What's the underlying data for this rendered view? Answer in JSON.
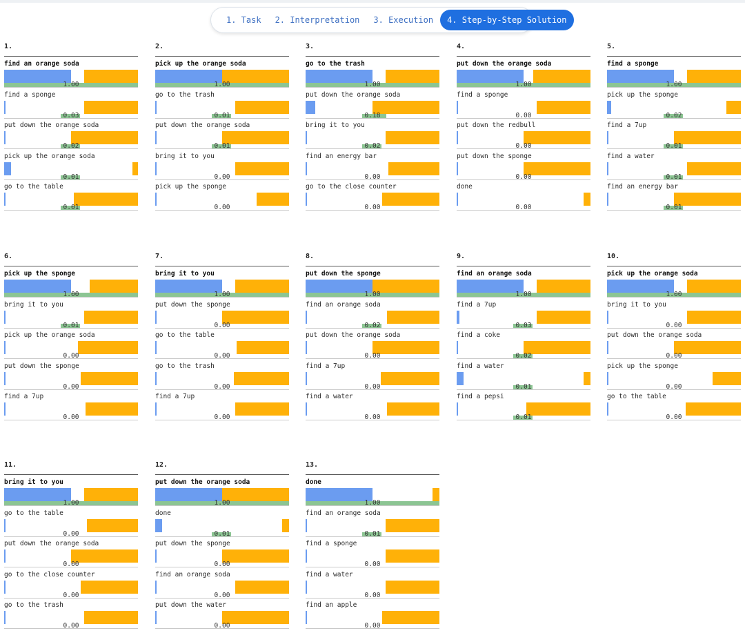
{
  "tabs": [
    {
      "label": "1. Task",
      "active": false
    },
    {
      "label": "2. Interpretation",
      "active": false
    },
    {
      "label": "3. Execution",
      "active": false
    },
    {
      "label": "4. Step-by-Step Solution",
      "active": true
    }
  ],
  "colors": {
    "blue": "#6b9cf0",
    "orange": "#ffb108",
    "green": "#8cc593",
    "accent": "#1f6fe0"
  },
  "steps": [
    {
      "number": "1.",
      "options": [
        {
          "label": "find an orange soda",
          "value": "1.00",
          "score": 0.5,
          "prob": 0.4
        },
        {
          "label": "find a sponge",
          "value": "0.03",
          "score": 0.01,
          "prob": 0.4
        },
        {
          "label": "put down the orange soda",
          "value": "0.02",
          "score": 0.01,
          "prob": 0.5
        },
        {
          "label": "pick up the orange soda",
          "value": "0.01",
          "score": 0.05,
          "prob": 0.04
        },
        {
          "label": "go to the table",
          "value": "0.01",
          "score": 0.01,
          "prob": 0.48
        }
      ]
    },
    {
      "number": "2.",
      "options": [
        {
          "label": "pick up the orange soda",
          "value": "1.00",
          "score": 0.5,
          "prob": 0.5
        },
        {
          "label": "go to the trash",
          "value": "0.01",
          "score": 0.01,
          "prob": 0.4
        },
        {
          "label": "put down the orange soda",
          "value": "0.01",
          "score": 0.01,
          "prob": 0.5
        },
        {
          "label": "bring it to you",
          "value": "0.00",
          "score": 0.0,
          "prob": 0.4
        },
        {
          "label": "pick up the sponge",
          "value": "0.00",
          "score": 0.0,
          "prob": 0.24
        }
      ]
    },
    {
      "number": "3.",
      "options": [
        {
          "label": "go to the trash",
          "value": "1.00",
          "score": 0.5,
          "prob": 0.4
        },
        {
          "label": "put down the orange soda",
          "value": "0.18",
          "score": 0.07,
          "prob": 0.5
        },
        {
          "label": "bring it to you",
          "value": "0.02",
          "score": 0.01,
          "prob": 0.4
        },
        {
          "label": "find an energy bar",
          "value": "0.00",
          "score": 0.0,
          "prob": 0.38
        },
        {
          "label": "go to the close counter",
          "value": "0.00",
          "score": 0.0,
          "prob": 0.43
        }
      ]
    },
    {
      "number": "4.",
      "options": [
        {
          "label": "put down the orange soda",
          "value": "1.00",
          "score": 0.5,
          "prob": 0.43
        },
        {
          "label": "find a sponge",
          "value": "0.00",
          "score": 0.0,
          "prob": 0.4
        },
        {
          "label": "put down the redbull",
          "value": "0.00",
          "score": 0.0,
          "prob": 0.5
        },
        {
          "label": "put down the sponge",
          "value": "0.00",
          "score": 0.0,
          "prob": 0.5
        },
        {
          "label": "done",
          "value": "0.00",
          "score": 0.0,
          "prob": 0.05
        }
      ]
    },
    {
      "number": "5.",
      "options": [
        {
          "label": "find a sponge",
          "value": "1.00",
          "score": 0.5,
          "prob": 0.4
        },
        {
          "label": "pick up the sponge",
          "value": "0.02",
          "score": 0.03,
          "prob": 0.11
        },
        {
          "label": "find a 7up",
          "value": "0.01",
          "score": 0.01,
          "prob": 0.5
        },
        {
          "label": "find a water",
          "value": "0.01",
          "score": 0.01,
          "prob": 0.4
        },
        {
          "label": "find an energy bar",
          "value": "0.01",
          "score": 0.01,
          "prob": 0.5
        }
      ]
    },
    {
      "number": "6.",
      "options": [
        {
          "label": "pick up the sponge",
          "value": "1.00",
          "score": 0.5,
          "prob": 0.36
        },
        {
          "label": "bring it to you",
          "value": "0.01",
          "score": 0.01,
          "prob": 0.4
        },
        {
          "label": "pick up the orange soda",
          "value": "0.00",
          "score": 0.0,
          "prob": 0.45
        },
        {
          "label": "put down the sponge",
          "value": "0.00",
          "score": 0.0,
          "prob": 0.43
        },
        {
          "label": "find a 7up",
          "value": "0.00",
          "score": 0.0,
          "prob": 0.39
        }
      ]
    },
    {
      "number": "7.",
      "options": [
        {
          "label": "bring it to you",
          "value": "1.00",
          "score": 0.5,
          "prob": 0.4
        },
        {
          "label": "put down the sponge",
          "value": "0.00",
          "score": 0.0,
          "prob": 0.5
        },
        {
          "label": "go to the table",
          "value": "0.00",
          "score": 0.0,
          "prob": 0.39
        },
        {
          "label": "go to the trash",
          "value": "0.00",
          "score": 0.0,
          "prob": 0.41
        },
        {
          "label": "find a 7up",
          "value": "0.00",
          "score": 0.0,
          "prob": 0.4
        }
      ]
    },
    {
      "number": "8.",
      "options": [
        {
          "label": "put down the sponge",
          "value": "1.00",
          "score": 0.5,
          "prob": 0.5
        },
        {
          "label": "find an orange soda",
          "value": "0.02",
          "score": 0.01,
          "prob": 0.39
        },
        {
          "label": "put down the orange soda",
          "value": "0.00",
          "score": 0.0,
          "prob": 0.5
        },
        {
          "label": "find a 7up",
          "value": "0.00",
          "score": 0.0,
          "prob": 0.44
        },
        {
          "label": "find a water",
          "value": "0.00",
          "score": 0.0,
          "prob": 0.39
        }
      ]
    },
    {
      "number": "9.",
      "options": [
        {
          "label": "find an orange soda",
          "value": "1.00",
          "score": 0.5,
          "prob": 0.4
        },
        {
          "label": "find a 7up",
          "value": "0.03",
          "score": 0.02,
          "prob": 0.4
        },
        {
          "label": "find a coke",
          "value": "0.02",
          "score": 0.01,
          "prob": 0.5
        },
        {
          "label": "find a water",
          "value": "0.01",
          "score": 0.05,
          "prob": 0.05
        },
        {
          "label": "find a pepsi",
          "value": "0.01",
          "score": 0.01,
          "prob": 0.48
        }
      ]
    },
    {
      "number": "10.",
      "options": [
        {
          "label": "pick up the orange soda",
          "value": "1.00",
          "score": 0.5,
          "prob": 0.4
        },
        {
          "label": "bring it to you",
          "value": "0.00",
          "score": 0.0,
          "prob": 0.4
        },
        {
          "label": "put down the orange soda",
          "value": "0.00",
          "score": 0.0,
          "prob": 0.5
        },
        {
          "label": "pick up the sponge",
          "value": "0.00",
          "score": 0.0,
          "prob": 0.21
        },
        {
          "label": "go to the table",
          "value": "0.00",
          "score": 0.0,
          "prob": 0.41
        }
      ]
    },
    {
      "number": "11.",
      "options": [
        {
          "label": "bring it to you",
          "value": "1.00",
          "score": 0.5,
          "prob": 0.4
        },
        {
          "label": "go to the table",
          "value": "0.00",
          "score": 0.0,
          "prob": 0.38
        },
        {
          "label": "put down the orange soda",
          "value": "0.00",
          "score": 0.0,
          "prob": 0.5
        },
        {
          "label": "go to the close counter",
          "value": "0.00",
          "score": 0.0,
          "prob": 0.43
        },
        {
          "label": "go to the trash",
          "value": "0.00",
          "score": 0.0,
          "prob": 0.4
        }
      ]
    },
    {
      "number": "12.",
      "options": [
        {
          "label": "put down the orange soda",
          "value": "1.00",
          "score": 0.5,
          "prob": 0.5
        },
        {
          "label": "done",
          "value": "0.01",
          "score": 0.05,
          "prob": 0.05
        },
        {
          "label": "put down the sponge",
          "value": "0.00",
          "score": 0.0,
          "prob": 0.5
        },
        {
          "label": "find an orange soda",
          "value": "0.00",
          "score": 0.0,
          "prob": 0.4
        },
        {
          "label": "put down the water",
          "value": "0.00",
          "score": 0.0,
          "prob": 0.5
        }
      ]
    },
    {
      "number": "13.",
      "options": [
        {
          "label": "done",
          "value": "1.00",
          "score": 0.5,
          "prob": 0.05
        },
        {
          "label": "find an orange soda",
          "value": "0.01",
          "score": 0.0,
          "prob": 0.4
        },
        {
          "label": "find a sponge",
          "value": "0.00",
          "score": 0.0,
          "prob": 0.4
        },
        {
          "label": "find a water",
          "value": "0.00",
          "score": 0.0,
          "prob": 0.4
        },
        {
          "label": "find an apple",
          "value": "0.00",
          "score": 0.0,
          "prob": 0.43
        }
      ]
    }
  ]
}
